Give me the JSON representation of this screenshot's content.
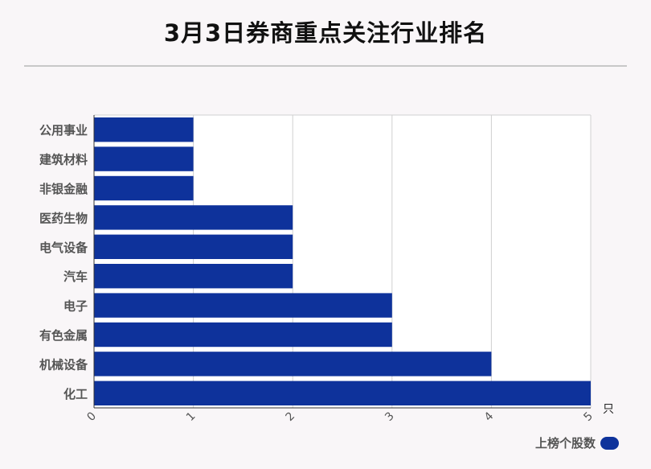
{
  "title": "3月3日券商重点关注行业排名",
  "chart_data": {
    "type": "bar",
    "orientation": "horizontal",
    "categories": [
      "公用事业",
      "建筑材料",
      "非银金融",
      "医药生物",
      "电气设备",
      "汽车",
      "电子",
      "有色金属",
      "机械设备",
      "化工"
    ],
    "series": [
      {
        "name": "上榜个股数",
        "values": [
          1,
          1,
          1,
          2,
          2,
          2,
          3,
          3,
          4,
          5
        ]
      }
    ],
    "xlim": [
      0,
      5
    ],
    "x_ticks": [
      "0",
      "1",
      "2",
      "3",
      "4",
      "5"
    ],
    "x_unit": "只",
    "grid": true,
    "legend": "bottom-right",
    "bar_color": "#0e329b"
  }
}
